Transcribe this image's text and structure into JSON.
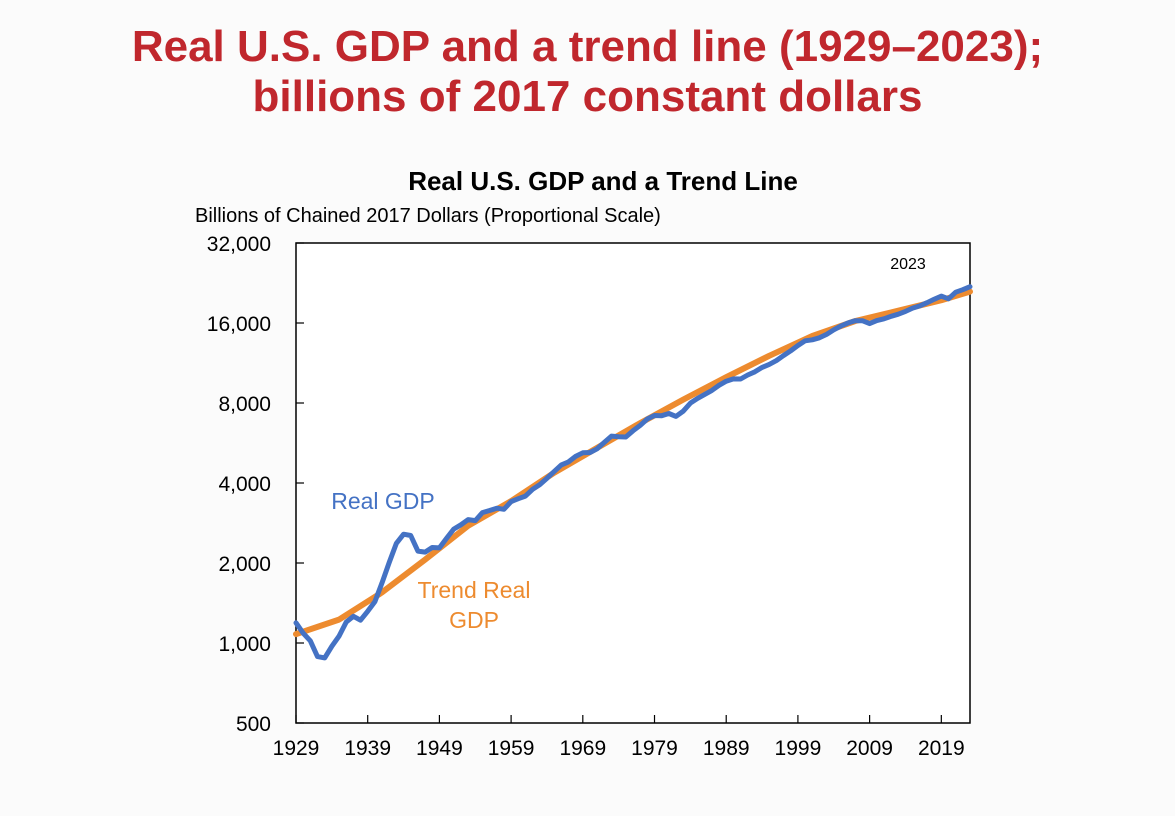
{
  "slide": {
    "title_line1": "Real U.S. GDP and a trend line (1929–2023);",
    "title_line2": "billions of 2017 constant dollars"
  },
  "chart_data": {
    "type": "line",
    "title": "Real U.S. GDP and a Trend Line",
    "ylabel": "Billions of Chained 2017 Dollars (Proportional Scale)",
    "y_scale": "log",
    "ylim": [
      500,
      32000
    ],
    "xlim": [
      1929,
      2023
    ],
    "y_ticks": [
      32000,
      16000,
      8000,
      4000,
      2000,
      1000,
      500
    ],
    "y_tick_labels": [
      "32,000",
      "16,000",
      "8,000",
      "4,000",
      "2,000",
      "1,000",
      "500"
    ],
    "x_ticks": [
      1929,
      1939,
      1949,
      1959,
      1969,
      1979,
      1989,
      1999,
      2009,
      2019
    ],
    "x_tick_labels": [
      "1929",
      "1939",
      "1949",
      "1959",
      "1969",
      "1979",
      "1989",
      "1999",
      "2009",
      "2019"
    ],
    "grid": false,
    "annotations": [
      {
        "text": "2023",
        "x": 2023
      }
    ],
    "series": [
      {
        "name": "Real GDP",
        "label_lines": [
          "Real GDP"
        ],
        "color": "#4472c4",
        "x": [
          1929,
          1930,
          1931,
          1932,
          1933,
          1934,
          1935,
          1936,
          1937,
          1938,
          1939,
          1940,
          1941,
          1942,
          1943,
          1944,
          1945,
          1946,
          1947,
          1948,
          1949,
          1950,
          1951,
          1952,
          1953,
          1954,
          1955,
          1956,
          1957,
          1958,
          1959,
          1960,
          1961,
          1962,
          1963,
          1964,
          1965,
          1966,
          1967,
          1968,
          1969,
          1970,
          1971,
          1972,
          1973,
          1974,
          1975,
          1976,
          1977,
          1978,
          1979,
          1980,
          1981,
          1982,
          1983,
          1984,
          1985,
          1986,
          1987,
          1988,
          1989,
          1990,
          1991,
          1992,
          1993,
          1994,
          1995,
          1996,
          1997,
          1998,
          1999,
          2000,
          2001,
          2002,
          2003,
          2004,
          2005,
          2006,
          2007,
          2008,
          2009,
          2010,
          2011,
          2012,
          2013,
          2014,
          2015,
          2016,
          2017,
          2018,
          2019,
          2020,
          2021,
          2022,
          2023
        ],
        "values": [
          1191,
          1089,
          1019,
          889,
          879,
          973,
          1061,
          1198,
          1260,
          1218,
          1316,
          1431,
          1683,
          2008,
          2373,
          2566,
          2539,
          2217,
          2199,
          2288,
          2279,
          2478,
          2683,
          2785,
          2913,
          2889,
          3094,
          3152,
          3215,
          3184,
          3406,
          3491,
          3571,
          3788,
          3944,
          4171,
          4414,
          4681,
          4802,
          5037,
          5196,
          5212,
          5380,
          5684,
          6006,
          5973,
          5957,
          6285,
          6591,
          6963,
          7179,
          7164,
          7304,
          7123,
          7452,
          7996,
          8326,
          8616,
          8922,
          9327,
          9667,
          9854,
          9845,
          10195,
          10480,
          10894,
          11175,
          11556,
          12071,
          12571,
          13168,
          13711,
          13838,
          14078,
          14497,
          15080,
          15587,
          16019,
          16322,
          16320,
          15911,
          16343,
          16592,
          16951,
          17266,
          17687,
          18209,
          18551,
          19071,
          19643,
          20195,
          19733,
          20895,
          21358,
          21923
        ]
      },
      {
        "name": "Trend Real GDP",
        "label_lines": [
          "Trend Real",
          "GDP"
        ],
        "color": "#ed8b2f",
        "x": [
          1929,
          1935,
          1941,
          1947,
          1953,
          1959,
          1965,
          1971,
          1977,
          1983,
          1989,
          1995,
          2001,
          2007,
          2013,
          2019,
          2023
        ],
        "values": [
          1080,
          1225,
          1550,
          2060,
          2760,
          3420,
          4370,
          5420,
          6720,
          8240,
          10000,
          12040,
          14300,
          16280,
          17800,
          19500,
          21000
        ]
      }
    ]
  }
}
